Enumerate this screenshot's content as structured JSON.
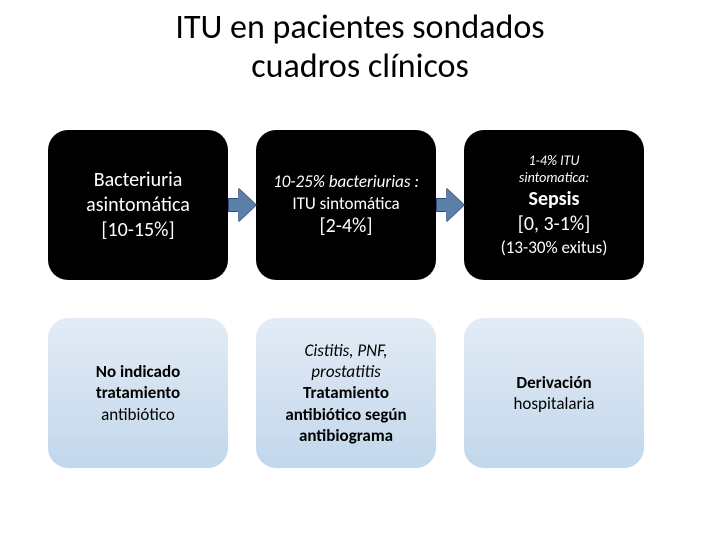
{
  "title": {
    "line1": "ITU en pacientes sondados",
    "line2": "cuadros clínicos"
  },
  "colors": {
    "arrow_fill": "#5b7fa8",
    "arrow_border": "#2f4f78",
    "box_dark_bg": "#000000",
    "box_dark_text": "#ffffff",
    "box_light_bg_top": "#e3ecf6",
    "box_light_bg_bot": "#c2d7ec",
    "box_light_text": "#000000"
  },
  "boxes": {
    "r1c1": {
      "style": "dark",
      "lines": [
        {
          "text": "Bacteriuria",
          "size": "lg",
          "bold": false
        },
        {
          "text": "asintomática",
          "size": "lg",
          "bold": false
        },
        {
          "text": "[10-15%]",
          "size": "lg",
          "bold": false
        }
      ]
    },
    "r1c2": {
      "style": "dark",
      "lines": [
        {
          "text": "10-25% bacteriurias :",
          "size": "md",
          "italic": true
        },
        {
          "text": "ITU sintomática",
          "size": "md",
          "bold": false
        },
        {
          "text": "[2-4%]",
          "size": "lg",
          "bold": false
        }
      ]
    },
    "r1c3": {
      "style": "dark",
      "lines": [
        {
          "text": "1-4% ITU",
          "size": "sm",
          "italic": true
        },
        {
          "text": "sintomatica:",
          "size": "sm",
          "italic": true
        },
        {
          "text": "Sepsis",
          "size": "lg",
          "bold": true
        },
        {
          "text": "[0, 3-1%]",
          "size": "lg",
          "bold": false
        },
        {
          "text": "(13-30% exitus)",
          "size": "md",
          "bold": false
        }
      ]
    },
    "r2c1": {
      "style": "light",
      "lines": [
        {
          "text": "No indicado",
          "size": "md",
          "bold": true
        },
        {
          "text": "tratamiento",
          "size": "md",
          "bold": true
        },
        {
          "text": "antibiótico",
          "size": "md",
          "bold": false
        }
      ]
    },
    "r2c2": {
      "style": "light",
      "lines": [
        {
          "text": "Cistitis, PNF,",
          "size": "md",
          "italic": true
        },
        {
          "text": "prostatitis",
          "size": "md",
          "italic": true
        },
        {
          "text": "Tratamiento",
          "size": "md",
          "bold": true
        },
        {
          "text": "antibiótico según",
          "size": "md",
          "bold": true
        },
        {
          "text": "antibiograma",
          "size": "md",
          "bold": true
        }
      ]
    },
    "r2c3": {
      "style": "light",
      "lines": [
        {
          "text": "Derivación",
          "size": "md",
          "bold": true
        },
        {
          "text": "hospitalaria",
          "size": "md",
          "bold": false
        }
      ]
    }
  }
}
